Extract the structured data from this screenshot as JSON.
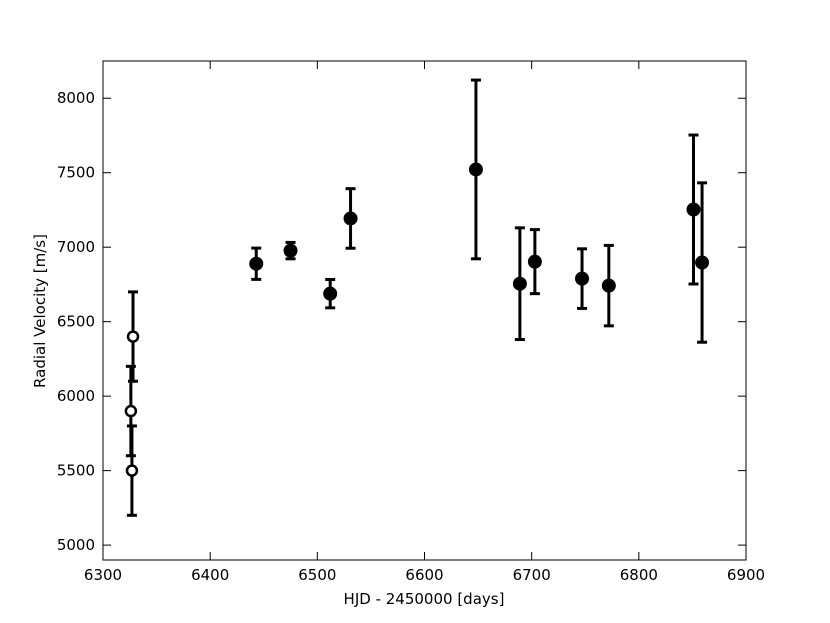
{
  "chart_data": {
    "type": "scatter",
    "x_label": "HJD - 2450000 [days]",
    "y_label": "Radial Velocity [m/s]",
    "xlim": [
      6300,
      6900
    ],
    "xticks": [
      6300,
      6400,
      6500,
      6600,
      6700,
      6800,
      6900
    ],
    "ylim": [
      4900,
      8250
    ],
    "yticks": [
      5000,
      5500,
      6000,
      6500,
      7000,
      7500,
      8000
    ],
    "series": [
      {
        "color": "#000000",
        "marker": "open",
        "x": [
          6326,
          6327,
          6328
        ],
        "values": [
          5900,
          5500,
          6400
        ],
        "errors": [
          300,
          300,
          300
        ]
      },
      {
        "color": "#000000",
        "marker": "filled",
        "x": [
          6443,
          6475,
          6512,
          6531,
          6648,
          6689,
          6703,
          6747,
          6772,
          6851,
          6859
        ],
        "values": [
          6889,
          6977,
          6688,
          7193,
          7522,
          6755,
          6903,
          6789,
          6742,
          7253,
          6897
        ],
        "errors": [
          105,
          55,
          95,
          200,
          600,
          375,
          215,
          200,
          270,
          500,
          535
        ]
      }
    ]
  }
}
